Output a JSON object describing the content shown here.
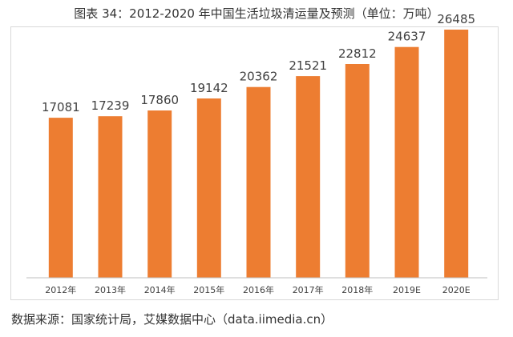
{
  "title": "图表 34：2012-2020 年中国生活垃圾清运量及预测（单位：万吨）",
  "source": "数据来源：国家统计局，艾媒数据中心（data.iimedia.cn）",
  "colors": {
    "bar": "#ED7D31",
    "axis": "#bfbfbf",
    "text": "#404040"
  },
  "chart_data": {
    "type": "bar",
    "title": "图表 34：2012-2020 年中国生活垃圾清运量及预测（单位：万吨）",
    "categories": [
      "2012年",
      "2013年",
      "2014年",
      "2015年",
      "2016年",
      "2017年",
      "2018年",
      "2019E",
      "2020E"
    ],
    "values": [
      17081,
      17239,
      17860,
      19142,
      20362,
      21521,
      22812,
      24637,
      26485
    ],
    "data_labels": [
      "17081",
      "17239",
      "17860",
      "19142",
      "20362",
      "21521",
      "22812",
      "24637",
      "26485"
    ],
    "xlabel": "",
    "ylabel": "",
    "ylim": [
      0,
      27000
    ],
    "grid": false,
    "legend": "none"
  }
}
